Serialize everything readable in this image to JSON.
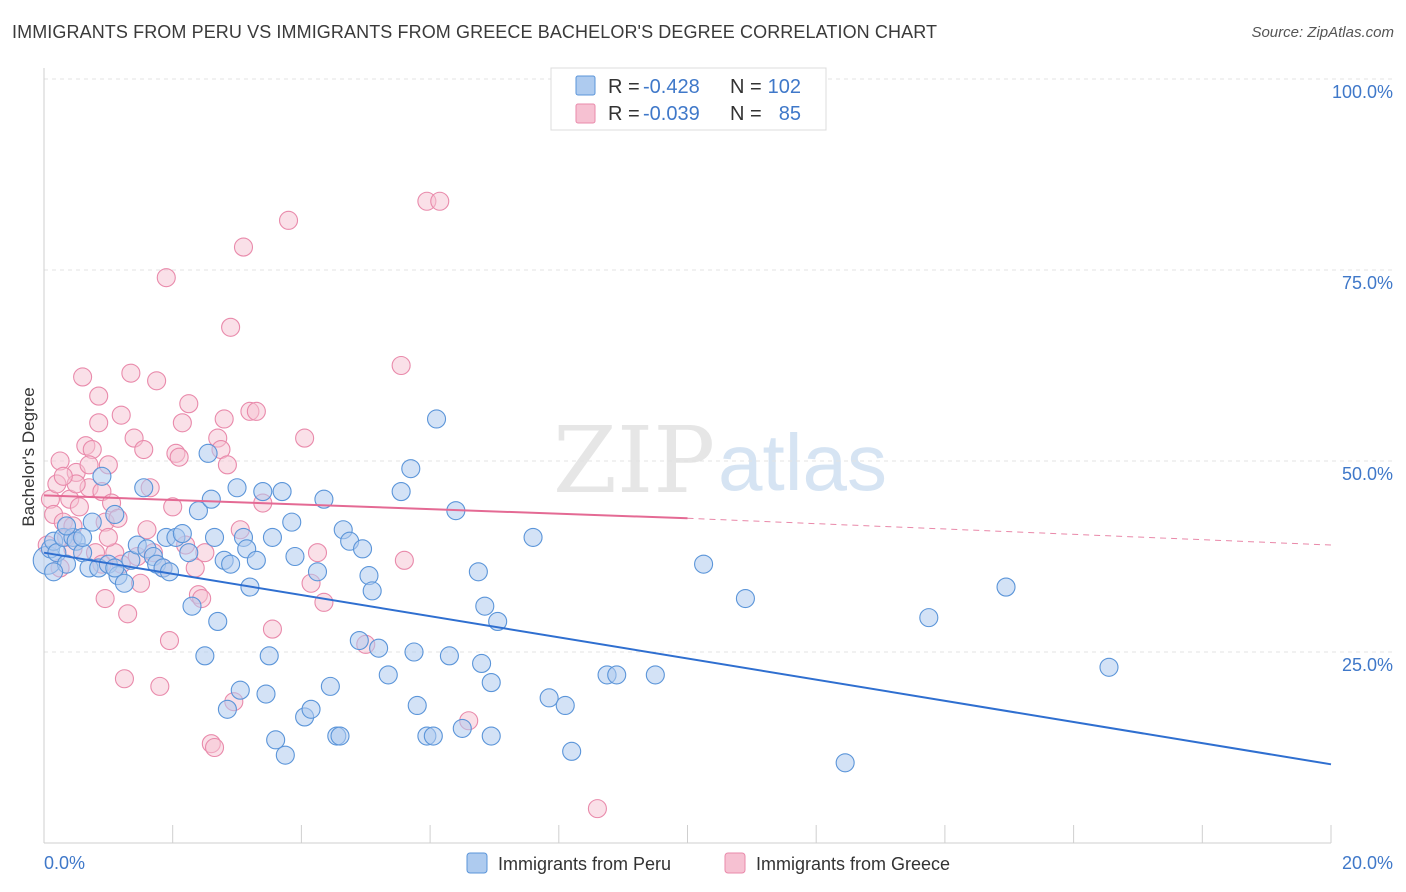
{
  "header": {
    "title": "IMMIGRANTS FROM PERU VS IMMIGRANTS FROM GREECE BACHELOR'S DEGREE CORRELATION CHART",
    "source": "Source: ZipAtlas.com"
  },
  "watermark": {
    "part1": "ZIP",
    "part2": "atlas"
  },
  "legend": {
    "rows": [
      {
        "r_label": "R =",
        "r_value": "-0.428",
        "n_label": "N =",
        "n_value": "102"
      },
      {
        "r_label": "R =",
        "r_value": "-0.039",
        "n_label": "N =",
        "n_value": "85"
      }
    ]
  },
  "colors": {
    "series1_fill": "#aecbef",
    "series1_stroke": "#5b95d9",
    "series1_line": "#2f6fd0",
    "series2_fill": "#f6c1d2",
    "series2_stroke": "#e98aab",
    "series2_line": "#e46a94",
    "grid": "#e3e3e3",
    "axis_text": "#3f78c9"
  },
  "chart_data": {
    "type": "scatter",
    "title": "IMMIGRANTS FROM PERU VS IMMIGRANTS FROM GREECE BACHELOR'S DEGREE CORRELATION CHART",
    "xlabel": "",
    "ylabel": "Bachelor's Degree",
    "xlim": [
      0,
      20
    ],
    "ylim": [
      0,
      100
    ],
    "x_ticks_labeled": [
      "0.0%",
      "20.0%"
    ],
    "y_ticks": [
      {
        "value": 25,
        "label": "25.0%"
      },
      {
        "value": 50,
        "label": "50.0%"
      },
      {
        "value": 75,
        "label": "75.0%"
      },
      {
        "value": 100,
        "label": "100.0%"
      }
    ],
    "grid": true,
    "legend_position": "bottom",
    "series": [
      {
        "name": "Immigrants from Peru",
        "color": "#5b95d9",
        "R": -0.428,
        "N": 102,
        "trend": {
          "x": [
            0,
            20
          ],
          "y": [
            38.0,
            10.3
          ]
        },
        "points": [
          [
            0.05,
            37.0
          ],
          [
            0.1,
            38.5
          ],
          [
            0.15,
            39.5
          ],
          [
            0.2,
            38.0
          ],
          [
            0.3,
            40.0
          ],
          [
            0.35,
            36.5
          ],
          [
            0.45,
            40.0
          ],
          [
            0.5,
            39.5
          ],
          [
            0.6,
            38.0
          ],
          [
            0.7,
            36.0
          ],
          [
            0.75,
            42.0
          ],
          [
            0.85,
            36.0
          ],
          [
            0.9,
            48.0
          ],
          [
            1.0,
            36.5
          ],
          [
            1.1,
            43.0
          ],
          [
            1.15,
            35.0
          ],
          [
            1.25,
            34.0
          ],
          [
            1.35,
            37.0
          ],
          [
            1.45,
            39.0
          ],
          [
            1.55,
            46.5
          ],
          [
            1.6,
            38.5
          ],
          [
            1.7,
            37.5
          ],
          [
            1.75,
            36.5
          ],
          [
            1.85,
            36.0
          ],
          [
            1.9,
            40.0
          ],
          [
            1.95,
            35.5
          ],
          [
            2.05,
            40.0
          ],
          [
            2.15,
            40.5
          ],
          [
            2.25,
            38.0
          ],
          [
            2.3,
            31.0
          ],
          [
            2.4,
            43.5
          ],
          [
            2.5,
            24.5
          ],
          [
            2.55,
            51.0
          ],
          [
            2.6,
            45.0
          ],
          [
            2.65,
            40.0
          ],
          [
            2.7,
            29.0
          ],
          [
            2.8,
            37.0
          ],
          [
            2.85,
            17.5
          ],
          [
            2.9,
            36.5
          ],
          [
            3.0,
            46.5
          ],
          [
            3.05,
            20.0
          ],
          [
            3.1,
            40.0
          ],
          [
            3.15,
            38.5
          ],
          [
            3.2,
            33.5
          ],
          [
            3.3,
            37.0
          ],
          [
            3.4,
            46.0
          ],
          [
            3.45,
            19.5
          ],
          [
            3.5,
            24.5
          ],
          [
            3.55,
            40.0
          ],
          [
            3.6,
            13.5
          ],
          [
            3.7,
            46.0
          ],
          [
            3.75,
            11.5
          ],
          [
            3.85,
            42.0
          ],
          [
            3.9,
            37.5
          ],
          [
            4.05,
            16.5
          ],
          [
            4.15,
            17.5
          ],
          [
            4.25,
            35.5
          ],
          [
            4.35,
            45.0
          ],
          [
            4.45,
            20.5
          ],
          [
            4.55,
            14.0
          ],
          [
            4.6,
            14.0
          ],
          [
            4.65,
            41.0
          ],
          [
            4.75,
            39.5
          ],
          [
            4.9,
            26.5
          ],
          [
            4.95,
            38.5
          ],
          [
            5.05,
            35.0
          ],
          [
            5.1,
            33.0
          ],
          [
            5.2,
            25.5
          ],
          [
            5.35,
            22.0
          ],
          [
            5.55,
            46.0
          ],
          [
            5.7,
            49.0
          ],
          [
            5.75,
            25.0
          ],
          [
            5.8,
            18.0
          ],
          [
            5.95,
            14.0
          ],
          [
            6.05,
            14.0
          ],
          [
            6.1,
            55.5
          ],
          [
            6.3,
            24.5
          ],
          [
            6.4,
            43.5
          ],
          [
            6.5,
            15.0
          ],
          [
            6.75,
            35.5
          ],
          [
            6.8,
            23.5
          ],
          [
            6.85,
            31.0
          ],
          [
            6.95,
            21.0
          ],
          [
            6.95,
            14.0
          ],
          [
            7.05,
            29.0
          ],
          [
            7.6,
            40.0
          ],
          [
            7.85,
            19.0
          ],
          [
            8.1,
            18.0
          ],
          [
            8.2,
            12.0
          ],
          [
            8.75,
            22.0
          ],
          [
            8.9,
            22.0
          ],
          [
            9.5,
            22.0
          ],
          [
            10.25,
            36.5
          ],
          [
            10.9,
            32.0
          ],
          [
            12.45,
            10.5
          ],
          [
            13.75,
            29.5
          ],
          [
            14.95,
            33.5
          ],
          [
            16.55,
            23.0
          ],
          [
            0.15,
            35.5
          ],
          [
            0.35,
            41.5
          ],
          [
            0.6,
            40.0
          ],
          [
            1.1,
            36.0
          ]
        ]
      },
      {
        "name": "Immigrants from Greece",
        "color": "#e98aab",
        "R": -0.039,
        "N": 85,
        "trend": {
          "x": [
            0,
            10
          ],
          "y": [
            45.5,
            42.5
          ]
        },
        "trend_extension": {
          "x": [
            10,
            20
          ],
          "y": [
            42.5,
            39.0
          ]
        },
        "points": [
          [
            0.05,
            39.0
          ],
          [
            0.1,
            45.0
          ],
          [
            0.15,
            43.0
          ],
          [
            0.2,
            47.0
          ],
          [
            0.25,
            50.0
          ],
          [
            0.3,
            42.0
          ],
          [
            0.35,
            40.0
          ],
          [
            0.4,
            45.0
          ],
          [
            0.45,
            38.5
          ],
          [
            0.5,
            48.5
          ],
          [
            0.55,
            44.0
          ],
          [
            0.6,
            61.0
          ],
          [
            0.65,
            52.0
          ],
          [
            0.7,
            46.5
          ],
          [
            0.75,
            51.5
          ],
          [
            0.8,
            38.0
          ],
          [
            0.85,
            58.5
          ],
          [
            0.85,
            55.0
          ],
          [
            0.9,
            46.0
          ],
          [
            0.95,
            42.0
          ],
          [
            0.95,
            32.0
          ],
          [
            1.0,
            49.5
          ],
          [
            1.05,
            44.5
          ],
          [
            1.1,
            38.0
          ],
          [
            1.15,
            42.5
          ],
          [
            1.2,
            56.0
          ],
          [
            1.25,
            21.5
          ],
          [
            1.3,
            30.0
          ],
          [
            1.35,
            61.5
          ],
          [
            1.4,
            53.0
          ],
          [
            1.45,
            37.5
          ],
          [
            1.5,
            34.0
          ],
          [
            1.55,
            51.5
          ],
          [
            1.6,
            41.0
          ],
          [
            1.65,
            46.5
          ],
          [
            1.7,
            38.0
          ],
          [
            1.75,
            60.5
          ],
          [
            1.8,
            20.5
          ],
          [
            1.85,
            36.0
          ],
          [
            1.9,
            74.0
          ],
          [
            1.95,
            26.5
          ],
          [
            2.0,
            44.0
          ],
          [
            2.05,
            51.0
          ],
          [
            2.1,
            50.5
          ],
          [
            2.15,
            55.0
          ],
          [
            2.2,
            39.0
          ],
          [
            2.25,
            57.5
          ],
          [
            2.35,
            36.0
          ],
          [
            2.4,
            32.5
          ],
          [
            2.45,
            32.0
          ],
          [
            2.5,
            38.0
          ],
          [
            2.6,
            13.0
          ],
          [
            2.65,
            12.5
          ],
          [
            2.7,
            53.0
          ],
          [
            2.75,
            51.5
          ],
          [
            2.8,
            55.5
          ],
          [
            2.85,
            49.5
          ],
          [
            2.9,
            67.5
          ],
          [
            2.95,
            18.5
          ],
          [
            3.05,
            41.0
          ],
          [
            3.1,
            78.0
          ],
          [
            3.2,
            56.5
          ],
          [
            3.3,
            56.5
          ],
          [
            3.4,
            44.5
          ],
          [
            3.55,
            28.0
          ],
          [
            3.8,
            81.5
          ],
          [
            4.05,
            53.0
          ],
          [
            4.15,
            34.0
          ],
          [
            4.25,
            38.0
          ],
          [
            4.35,
            31.5
          ],
          [
            5.0,
            26.0
          ],
          [
            5.55,
            62.5
          ],
          [
            5.6,
            37.0
          ],
          [
            5.95,
            84.0
          ],
          [
            6.15,
            84.0
          ],
          [
            6.6,
            16.0
          ],
          [
            8.6,
            4.5
          ],
          [
            0.25,
            36.0
          ],
          [
            0.45,
            41.5
          ],
          [
            0.5,
            47.0
          ],
          [
            0.7,
            49.5
          ],
          [
            0.9,
            36.5
          ],
          [
            1.0,
            40.0
          ],
          [
            1.2,
            36.5
          ],
          [
            0.3,
            48.0
          ]
        ]
      }
    ]
  }
}
